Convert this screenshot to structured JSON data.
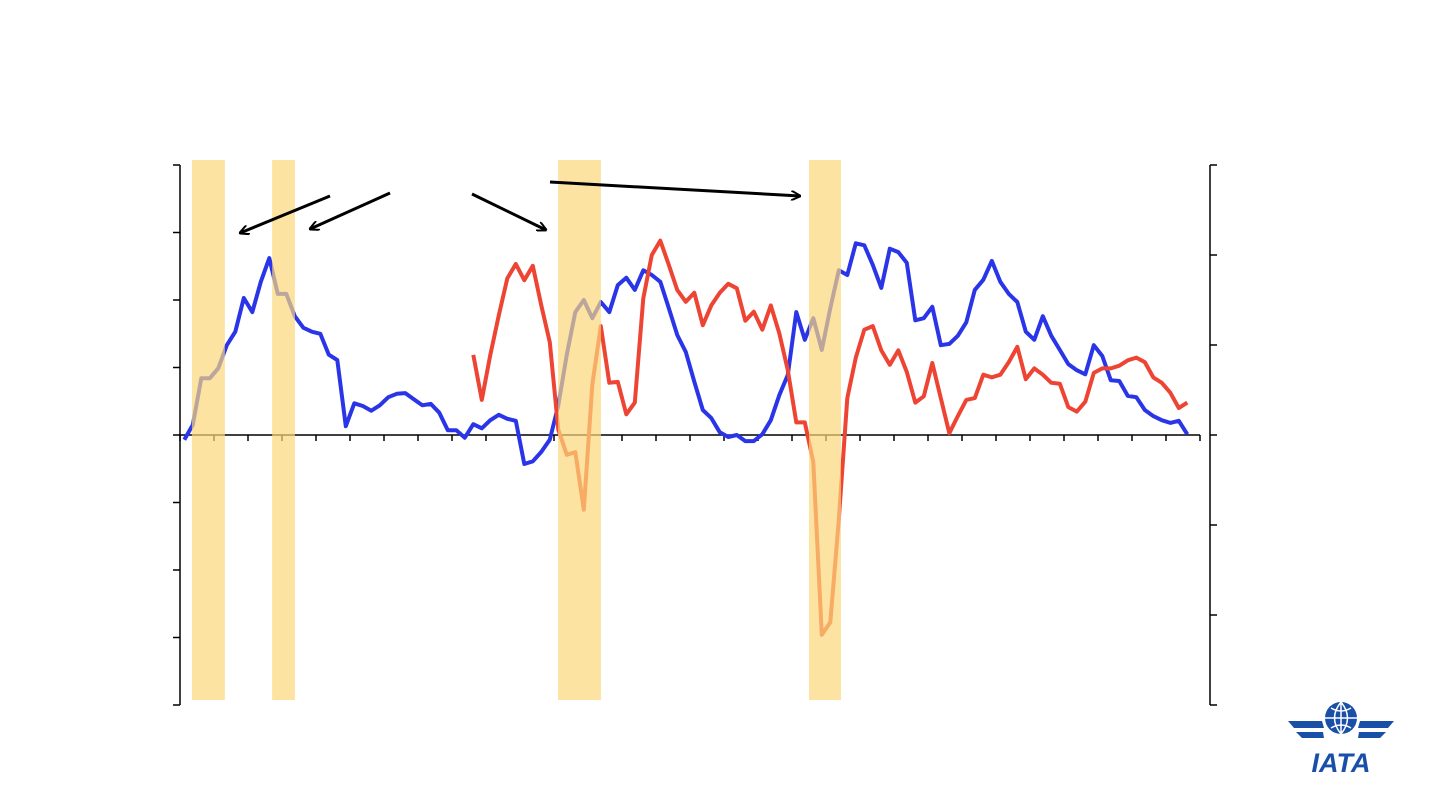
{
  "chart_data": {
    "type": "line",
    "x": [
      0.125,
      0.375,
      0.625,
      0.875,
      1.125,
      1.375,
      1.625,
      1.875,
      2.125,
      2.375,
      2.625,
      2.875,
      3.125,
      3.375,
      3.625,
      3.875,
      4.125,
      4.375,
      4.625,
      4.875,
      5.125,
      5.375,
      5.625,
      5.875,
      6.125,
      6.375,
      6.625,
      6.875,
      7.125,
      7.375,
      7.625,
      7.875,
      8.125,
      8.375,
      8.625,
      8.875,
      9.125,
      9.375,
      9.625,
      9.875,
      10.125,
      10.375,
      10.625,
      10.875,
      11.125,
      11.375,
      11.625,
      11.875,
      12.125,
      12.375,
      12.625,
      12.875,
      13.125,
      13.375,
      13.625,
      13.875,
      14.125,
      14.375,
      14.625,
      14.875,
      15.125,
      15.375,
      15.625,
      15.875,
      16.125,
      16.375,
      16.625,
      16.875,
      17.125,
      17.375,
      17.625,
      17.875,
      18.125,
      18.375,
      18.625,
      18.875,
      19.125,
      19.375,
      19.625,
      19.875,
      20.125,
      20.375,
      20.625,
      20.875,
      21.125,
      21.375,
      21.625,
      21.875,
      22.125,
      22.375,
      22.625,
      22.875,
      23.125,
      23.375,
      23.625,
      23.875,
      24.125,
      24.375,
      24.625,
      24.875,
      25.125,
      25.375,
      25.625,
      25.875,
      26.125,
      26.375,
      26.625,
      26.875,
      27.125,
      27.375,
      27.625,
      27.875,
      28.125,
      28.375,
      28.625,
      28.875,
      29.125,
      29.375,
      29.625
    ],
    "series": [
      {
        "color": "#2a35e8",
        "axis": "y",
        "values": [
          -0.07,
          0.15,
          0.84,
          0.84,
          0.99,
          1.33,
          1.53,
          2.03,
          1.82,
          2.27,
          2.62,
          2.09,
          2.09,
          1.76,
          1.59,
          1.53,
          1.5,
          1.19,
          1.11,
          0.13,
          0.47,
          0.43,
          0.36,
          0.44,
          0.56,
          0.61,
          0.62,
          0.53,
          0.44,
          0.46,
          0.33,
          0.07,
          0.07,
          -0.04,
          0.16,
          0.1,
          0.22,
          0.3,
          0.24,
          0.21,
          -0.43,
          -0.39,
          -0.25,
          -0.07,
          0.44,
          1.19,
          1.82,
          2.0,
          1.73,
          1.97,
          1.82,
          2.22,
          2.33,
          2.15,
          2.44,
          2.37,
          2.27,
          1.88,
          1.48,
          1.23,
          0.79,
          0.37,
          0.25,
          0.04,
          -0.03,
          0.0,
          -0.09,
          -0.09,
          0.01,
          0.22,
          0.59,
          0.89,
          1.82,
          1.41,
          1.73,
          1.26,
          1.88,
          2.44,
          2.37,
          2.84,
          2.81,
          2.52,
          2.18,
          2.76,
          2.71,
          2.55,
          1.7,
          1.73,
          1.9,
          1.33,
          1.35,
          1.47,
          1.67,
          2.15,
          2.3,
          2.58,
          2.27,
          2.09,
          1.97,
          1.53,
          1.41,
          1.76,
          1.47,
          1.26,
          1.05,
          0.96,
          0.9,
          1.33,
          1.17,
          0.81,
          0.8,
          0.58,
          0.56,
          0.37,
          0.28,
          0.22,
          0.18,
          0.21,
          0.01
        ]
      },
      {
        "color": "#ee4433",
        "axis": "y2",
        "values": [
          null,
          null,
          null,
          null,
          null,
          null,
          null,
          null,
          null,
          null,
          null,
          null,
          null,
          null,
          null,
          null,
          null,
          null,
          null,
          null,
          null,
          null,
          null,
          null,
          null,
          null,
          null,
          null,
          null,
          null,
          null,
          null,
          null,
          null,
          0.89,
          0.39,
          0.89,
          1.33,
          1.74,
          1.9,
          1.72,
          1.88,
          1.44,
          1.03,
          0.06,
          -0.22,
          -0.19,
          -0.83,
          0.56,
          1.21,
          0.58,
          0.59,
          0.23,
          0.36,
          1.52,
          2.0,
          2.16,
          1.89,
          1.61,
          1.48,
          1.58,
          1.22,
          1.44,
          1.58,
          1.68,
          1.63,
          1.27,
          1.37,
          1.17,
          1.44,
          1.13,
          0.72,
          0.14,
          0.14,
          -0.3,
          -2.22,
          -2.08,
          -0.94,
          0.41,
          0.86,
          1.17,
          1.21,
          0.94,
          0.78,
          0.94,
          0.7,
          0.36,
          0.43,
          0.8,
          0.41,
          0.02,
          0.21,
          0.39,
          0.41,
          0.67,
          0.64,
          0.67,
          0.81,
          0.98,
          0.62,
          0.74,
          0.67,
          0.58,
          0.57,
          0.31,
          0.26,
          0.37,
          0.69,
          0.74,
          0.74,
          0.77,
          0.83,
          0.86,
          0.81,
          0.64,
          0.58,
          0.47,
          0.3,
          0.36
        ]
      }
    ],
    "shaded_periods": [
      [
        0.35,
        1.32
      ],
      [
        2.71,
        3.38
      ],
      [
        11.12,
        12.38
      ],
      [
        18.5,
        19.44
      ]
    ],
    "shade_color": "#fbd77a",
    "xlim": [
      0,
      30
    ],
    "xticks": [
      0,
      1,
      2,
      3,
      4,
      5,
      6,
      7,
      8,
      9,
      10,
      11,
      12,
      13,
      14,
      15,
      16,
      17,
      18,
      19,
      20,
      21,
      22,
      23,
      24,
      25,
      26,
      27,
      28,
      29,
      30
    ],
    "ylim": [
      -4,
      4
    ],
    "yticks": [
      -4,
      -3,
      -2,
      -1,
      0,
      1,
      2,
      3,
      4
    ],
    "y2lim": [
      -3,
      3
    ],
    "y2ticks": [
      -3,
      -2,
      -1,
      0,
      1,
      2,
      3
    ]
  },
  "logo": {
    "text": "IATA"
  }
}
